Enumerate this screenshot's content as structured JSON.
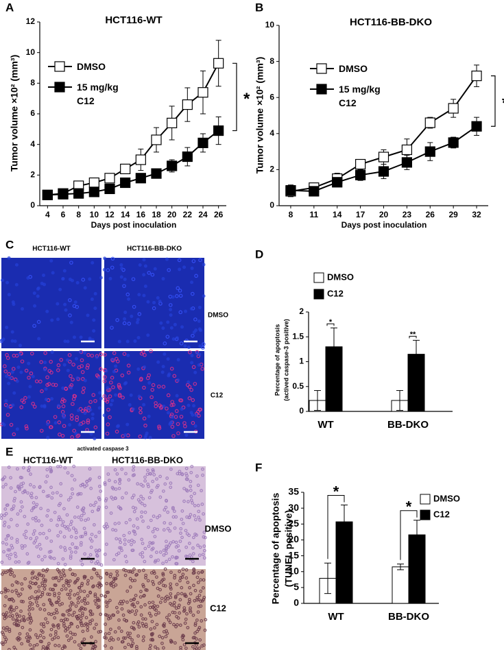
{
  "panels": [
    "A",
    "B",
    "C",
    "D",
    "E",
    "F"
  ],
  "chart_data": [
    {
      "type": "line",
      "title": "HCT116-WT",
      "xlabel": "Days post inoculation",
      "ylabel": "Tumor volume ×10² (mm³)",
      "x": [
        4,
        6,
        8,
        10,
        12,
        14,
        16,
        18,
        20,
        22,
        24,
        26
      ],
      "xlim": [
        3,
        27
      ],
      "xticks": [
        4,
        6,
        8,
        10,
        12,
        14,
        16,
        18,
        20,
        22,
        24,
        26
      ],
      "ylim": [
        0,
        12
      ],
      "yticks": [
        0,
        2,
        4,
        6,
        8,
        10,
        12
      ],
      "grid": false,
      "series": [
        {
          "name": "DMSO",
          "color": "#ffffff",
          "values": [
            0.7,
            0.8,
            1.3,
            1.5,
            1.8,
            2.4,
            3.0,
            4.3,
            5.4,
            6.6,
            7.4,
            9.3
          ],
          "errors": [
            0.1,
            0.1,
            0.2,
            0.2,
            0.2,
            0.3,
            0.7,
            0.8,
            1.1,
            1.1,
            1.4,
            1.5
          ]
        },
        {
          "name": "15 mg/kg C12",
          "color": "#000000",
          "values": [
            0.7,
            0.75,
            0.8,
            0.9,
            1.1,
            1.5,
            1.8,
            2.1,
            2.6,
            3.2,
            4.1,
            4.9
          ],
          "errors": [
            0.1,
            0.1,
            0.2,
            0.2,
            0.2,
            0.2,
            0.2,
            0.3,
            0.4,
            0.6,
            0.6,
            0.9
          ]
        }
      ],
      "annotations": [
        "*"
      ]
    },
    {
      "type": "line",
      "title": "HCT116-BB-DKO",
      "xlabel": "Days post inoculation",
      "ylabel": "Tumor volume ×10² (mm³)",
      "x": [
        8,
        11,
        14,
        17,
        20,
        23,
        26,
        29,
        32
      ],
      "xlim": [
        6.5,
        33.5
      ],
      "xticks": [
        8,
        11,
        14,
        17,
        20,
        23,
        26,
        29,
        32
      ],
      "ylim": [
        0,
        10
      ],
      "yticks": [
        0,
        2,
        4,
        6,
        8,
        10
      ],
      "grid": false,
      "series": [
        {
          "name": "DMSO",
          "color": "#ffffff",
          "values": [
            0.8,
            1.0,
            1.5,
            2.3,
            2.7,
            3.1,
            4.6,
            5.4,
            7.2
          ],
          "errors": [
            0.3,
            0.2,
            0.3,
            0.2,
            0.4,
            0.6,
            0.3,
            0.5,
            0.6
          ]
        },
        {
          "name": "15 mg/kg C12",
          "color": "#000000",
          "values": [
            0.85,
            0.8,
            1.3,
            1.7,
            1.9,
            2.4,
            3.0,
            3.5,
            4.4
          ],
          "errors": [
            0.3,
            0.1,
            0.2,
            0.3,
            0.4,
            0.4,
            0.5,
            0.3,
            0.5
          ]
        }
      ],
      "annotations": [
        "*"
      ]
    },
    {
      "type": "bar",
      "ylabel": [
        "Percentage of apoptosis",
        "(actived caspase-3 positive)"
      ],
      "categories": [
        "WT",
        "BB-DKO"
      ],
      "ylim": [
        0,
        2
      ],
      "yticks": [
        0,
        0.5,
        1,
        1.5,
        2
      ],
      "grid": false,
      "series": [
        {
          "name": "DMSO",
          "color": "#ffffff",
          "values": [
            0.22,
            0.22
          ],
          "errors": [
            0.2,
            0.2
          ]
        },
        {
          "name": "C12",
          "color": "#000000",
          "values": [
            1.3,
            1.15
          ],
          "errors": [
            0.38,
            0.28
          ]
        }
      ],
      "annotations": [
        "*",
        "**"
      ]
    },
    {
      "type": "bar",
      "ylabel": [
        "Percentage of apoptosis",
        "(TUNEL positive)"
      ],
      "categories": [
        "WT",
        "BB-DKO"
      ],
      "ylim": [
        0,
        35
      ],
      "yticks": [
        0,
        5,
        10,
        15,
        20,
        25,
        30,
        35
      ],
      "grid": false,
      "series": [
        {
          "name": "DMSO",
          "color": "#ffffff",
          "values": [
            7.9,
            11.5
          ],
          "errors": [
            4.8,
            0.9
          ]
        },
        {
          "name": "C12",
          "color": "#000000",
          "values": [
            25.7,
            21.6
          ],
          "errors": [
            5.3,
            4.6
          ]
        }
      ],
      "annotations": [
        "*",
        "*"
      ]
    }
  ],
  "micrographs": [
    {
      "columns": [
        "HCT116-WT",
        "HCT116-BB-DKO"
      ],
      "rows": [
        "DMSO",
        "C12"
      ],
      "caption": "activated caspase 3"
    },
    {
      "columns": [
        "HCT116-WT",
        "HCT116-BB-DKO"
      ],
      "rows": [
        "DMSO",
        "C12"
      ]
    }
  ]
}
